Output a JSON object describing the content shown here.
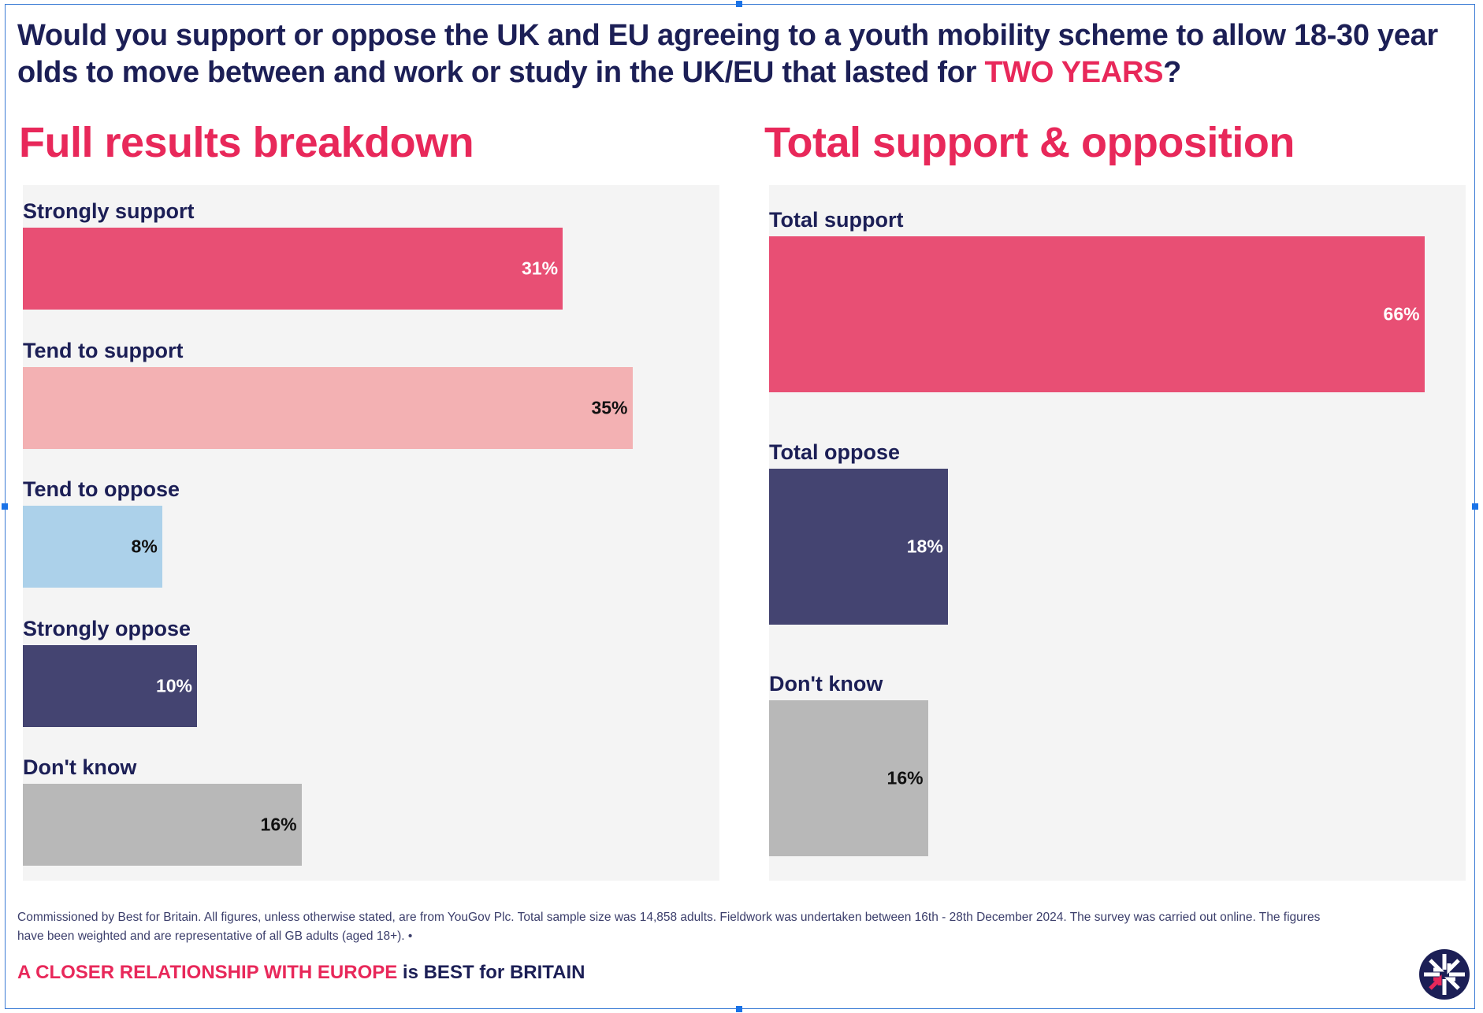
{
  "question": {
    "text_before": "Would you support or oppose the UK and EU agreeing to a youth mobility scheme to allow 18-30 year olds to move between and work or study in the UK/EU that lasted for ",
    "highlight": "TWO YEARS",
    "text_after": "?"
  },
  "colors": {
    "accent": "#e8285a",
    "navy": "#1c1f56",
    "panel_bg": "#f4f4f4"
  },
  "chart_data": [
    {
      "type": "bar",
      "orientation": "horizontal",
      "title": "Full results breakdown",
      "categories": [
        "Strongly support",
        "Tend to support",
        "Tend to oppose",
        "Strongly oppose",
        "Don't know"
      ],
      "values": [
        31,
        35,
        8,
        10,
        16
      ],
      "value_labels": [
        "31%",
        "35%",
        "8%",
        "10%",
        "16%"
      ],
      "colors": [
        "#e84f74",
        "#f3b1b3",
        "#acd1ea",
        "#444471",
        "#b8b8b8"
      ],
      "label_colors": [
        "#ffffff",
        "#111111",
        "#111111",
        "#ffffff",
        "#111111"
      ],
      "unit": "%",
      "xlim": [
        0,
        40
      ],
      "grid": false
    },
    {
      "type": "bar",
      "orientation": "horizontal",
      "title": "Total support & opposition",
      "categories": [
        "Total support",
        "Total oppose",
        "Don't know"
      ],
      "values": [
        66,
        18,
        16
      ],
      "value_labels": [
        "66%",
        "18%",
        "16%"
      ],
      "colors": [
        "#e84f74",
        "#444471",
        "#b8b8b8"
      ],
      "label_colors": [
        "#ffffff",
        "#ffffff",
        "#111111"
      ],
      "unit": "%",
      "xlim": [
        0,
        70
      ],
      "grid": false
    }
  ],
  "footnote": "Commissioned by Best for Britain. All figures, unless otherwise stated, are from YouGov Plc. Total sample size was 14,858 adults. Fieldwork was undertaken between 16th - 28th December 2024. The survey was carried out online. The figures have been weighted and are representative of all GB adults (aged 18+). •",
  "tagline": {
    "highlight": "A CLOSER RELATIONSHIP WITH EUROPE",
    "rest": " is BEST for BRITAIN"
  },
  "logo": {
    "icon": "union-jack-roundel-icon"
  }
}
